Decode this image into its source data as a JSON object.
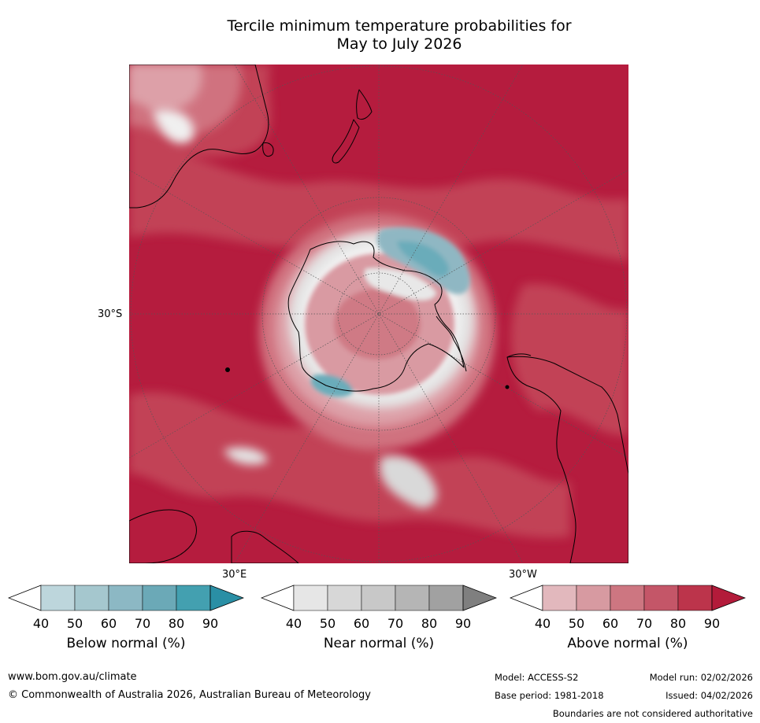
{
  "title_line1": "Tercile minimum temperature probabilities for",
  "title_line2": "May to July 2026",
  "map": {
    "lat_label": "30°S",
    "lon_labels": [
      "30°E",
      "30°W"
    ],
    "colors": {
      "ocean_high": "#b51c3e",
      "above_70": "#c34459",
      "above_60": "#d0727f",
      "above_50": "#dda0a8",
      "near": "#e4e4e4",
      "white": "#ffffff",
      "below_60": "#8fb7c3",
      "below_70": "#6aacba",
      "coast": "#000000",
      "grid": "#555555"
    }
  },
  "colorbars": [
    {
      "name": "below",
      "title": "Below normal (%)",
      "ticks": [
        "40",
        "50",
        "60",
        "70",
        "80",
        "90"
      ],
      "colors": [
        "#ffffff",
        "#bdd6dc",
        "#a5c7ce",
        "#8cb8c4",
        "#6ba9b7",
        "#43a0b0",
        "#2a8fa5"
      ]
    },
    {
      "name": "near",
      "title": "Near normal (%)",
      "ticks": [
        "40",
        "50",
        "60",
        "70",
        "80",
        "90"
      ],
      "colors": [
        "#ffffff",
        "#e6e6e6",
        "#d7d7d7",
        "#c8c8c8",
        "#b5b5b5",
        "#a1a1a1",
        "#7f7f7f"
      ]
    },
    {
      "name": "above",
      "title": "Above normal (%)",
      "ticks": [
        "40",
        "50",
        "60",
        "70",
        "80",
        "90"
      ],
      "colors": [
        "#ffffff",
        "#e2b8bd",
        "#d79aa1",
        "#cd7681",
        "#c45668",
        "#bc344b",
        "#b31b3a"
      ]
    }
  ],
  "footer": {
    "website": "www.bom.gov.au/climate",
    "copyright": "© Commonwealth of Australia 2026, Australian Bureau of Meteorology",
    "model": "Model: ACCESS-S2",
    "model_run": "Model run: 02/02/2026",
    "base_period": "Base period: 1981-2018",
    "issued": "Issued: 04/02/2026",
    "disclaimer": "Boundaries are not considered authoritative"
  }
}
